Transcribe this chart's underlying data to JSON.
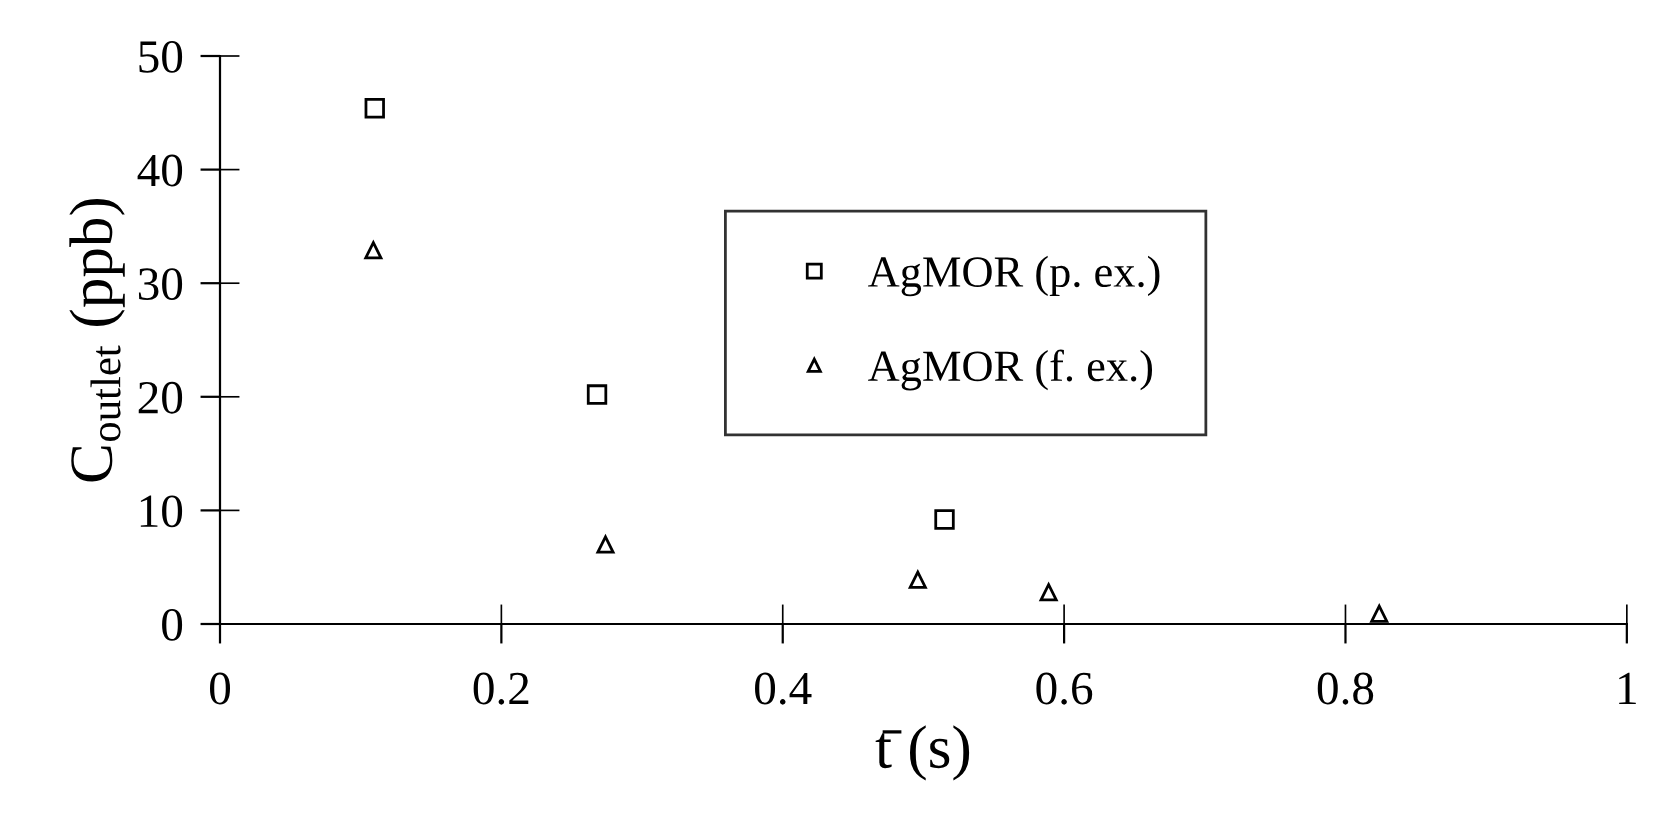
{
  "chart_data": {
    "type": "scatter",
    "xlabel": "t̄ (s)",
    "ylabel": "C$_{outlet}$ (ppb)",
    "xlim": [
      0,
      1
    ],
    "xticks": [
      0,
      0.2,
      0.4,
      0.6,
      0.8,
      1
    ],
    "ylim": [
      0,
      50
    ],
    "yticks": [
      0,
      10,
      20,
      30,
      40,
      50
    ],
    "grid": false,
    "legend": "center",
    "series": [
      {
        "name": "AgMOR (p. ex.)",
        "color": "#000000",
        "marker": "square",
        "x": [
          0.11,
          0.268,
          0.515
        ],
        "values": [
          45.4,
          20.2,
          9.2
        ]
      },
      {
        "name": "AgMOR (f. ex.)",
        "color": "#000000",
        "marker": "triangle",
        "x": [
          0.109,
          0.274,
          0.496,
          0.589,
          0.824
        ],
        "values": [
          32.9,
          7.0,
          3.9,
          2.8,
          0.9
        ]
      }
    ]
  }
}
